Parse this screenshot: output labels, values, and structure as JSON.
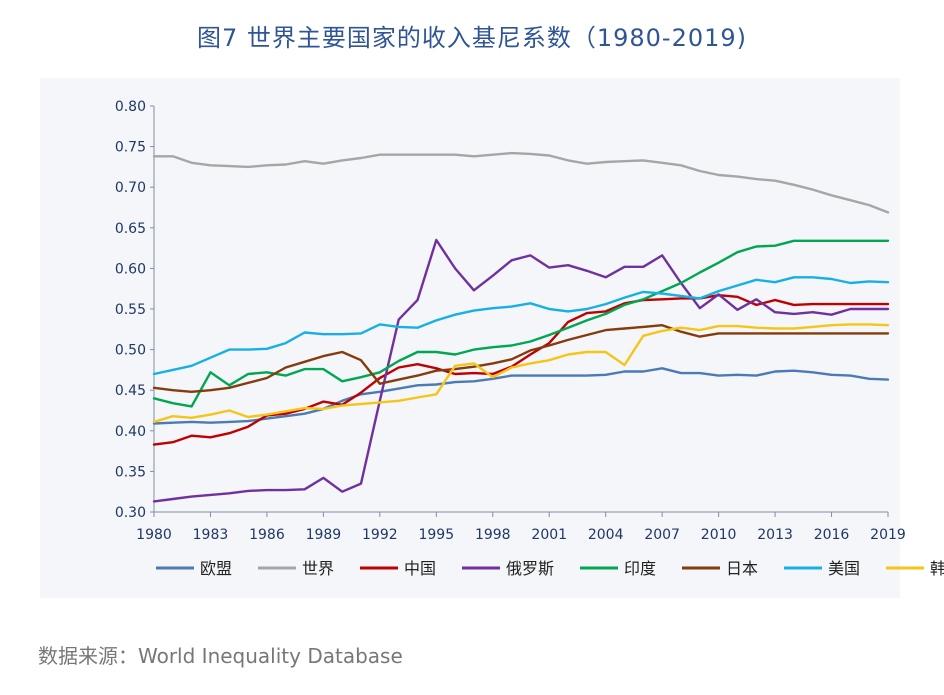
{
  "title": "图7  世界主要国家的收入基尼系数（1980-2019)",
  "source": "数据来源：World Inequality Database",
  "chart_data": {
    "type": "line",
    "title": "图7  世界主要国家的收入基尼系数（1980-2019)",
    "xlabel": "",
    "ylabel": "",
    "x": [
      1980,
      1981,
      1982,
      1983,
      1984,
      1985,
      1986,
      1987,
      1988,
      1989,
      1990,
      1991,
      1992,
      1993,
      1994,
      1995,
      1996,
      1997,
      1998,
      1999,
      2000,
      2001,
      2002,
      2003,
      2004,
      2005,
      2006,
      2007,
      2008,
      2009,
      2010,
      2011,
      2012,
      2013,
      2014,
      2015,
      2016,
      2017,
      2018,
      2019
    ],
    "xticks": [
      1980,
      1983,
      1986,
      1989,
      1992,
      1995,
      1998,
      2001,
      2004,
      2007,
      2010,
      2013,
      2016,
      2019
    ],
    "yticks": [
      "0.30",
      "0.35",
      "0.40",
      "0.45",
      "0.50",
      "0.55",
      "0.60",
      "0.65",
      "0.70",
      "0.75",
      "0.80"
    ],
    "xlim": [
      1980,
      2019
    ],
    "ylim": [
      0.3,
      0.8
    ],
    "grid": false,
    "legend_position": "bottom",
    "series": [
      {
        "name": "欧盟",
        "color": "#4a7ab7",
        "values": [
          0.409,
          0.41,
          0.411,
          0.41,
          0.411,
          0.412,
          0.415,
          0.418,
          0.421,
          0.427,
          0.437,
          0.445,
          0.448,
          0.452,
          0.456,
          0.457,
          0.46,
          0.461,
          0.464,
          0.468,
          0.468,
          0.468,
          0.468,
          0.468,
          0.469,
          0.473,
          0.473,
          0.477,
          0.471,
          0.471,
          0.468,
          0.469,
          0.468,
          0.473,
          0.474,
          0.472,
          0.469,
          0.468,
          0.464,
          0.463
        ]
      },
      {
        "name": "世界",
        "color": "#a6a6a6",
        "values": [
          0.738,
          0.738,
          0.73,
          0.727,
          0.726,
          0.725,
          0.727,
          0.728,
          0.732,
          0.729,
          0.733,
          0.736,
          0.74,
          0.74,
          0.74,
          0.74,
          0.74,
          0.738,
          0.74,
          0.742,
          0.741,
          0.739,
          0.733,
          0.729,
          0.731,
          0.732,
          0.733,
          0.73,
          0.727,
          0.72,
          0.715,
          0.713,
          0.71,
          0.708,
          0.703,
          0.697,
          0.69,
          0.684,
          0.678,
          0.669
        ]
      },
      {
        "name": "中国",
        "color": "#c00000",
        "values": [
          0.383,
          0.386,
          0.394,
          0.392,
          0.397,
          0.405,
          0.419,
          0.421,
          0.427,
          0.436,
          0.432,
          0.447,
          0.465,
          0.478,
          0.482,
          0.477,
          0.47,
          0.471,
          0.47,
          0.479,
          0.494,
          0.508,
          0.534,
          0.545,
          0.547,
          0.557,
          0.561,
          0.562,
          0.563,
          0.563,
          0.567,
          0.565,
          0.555,
          0.561,
          0.555,
          0.556,
          0.556,
          0.556,
          0.556,
          0.556
        ]
      },
      {
        "name": "俄罗斯",
        "color": "#7030a0",
        "values": [
          0.313,
          0.316,
          0.319,
          0.321,
          0.323,
          0.326,
          0.327,
          0.327,
          0.328,
          0.342,
          0.325,
          0.335,
          0.437,
          0.537,
          0.561,
          0.635,
          0.6,
          0.573,
          0.591,
          0.61,
          0.616,
          0.601,
          0.604,
          0.597,
          0.589,
          0.602,
          0.602,
          0.616,
          0.582,
          0.551,
          0.568,
          0.549,
          0.562,
          0.546,
          0.544,
          0.546,
          0.543,
          0.55,
          0.55,
          0.55
        ]
      },
      {
        "name": "印度",
        "color": "#00a651",
        "values": [
          0.44,
          0.434,
          0.43,
          0.472,
          0.456,
          0.47,
          0.472,
          0.468,
          0.476,
          0.476,
          0.461,
          0.466,
          0.472,
          0.486,
          0.497,
          0.497,
          0.494,
          0.5,
          0.503,
          0.505,
          0.51,
          0.518,
          0.527,
          0.536,
          0.544,
          0.555,
          0.562,
          0.572,
          0.582,
          0.595,
          0.607,
          0.62,
          0.627,
          0.628,
          0.634,
          0.634,
          0.634,
          0.634,
          0.634,
          0.634
        ]
      },
      {
        "name": "日本",
        "color": "#843c0c",
        "values": [
          0.453,
          0.45,
          0.448,
          0.45,
          0.453,
          0.459,
          0.465,
          0.478,
          0.485,
          0.492,
          0.497,
          0.487,
          0.458,
          0.463,
          0.468,
          0.474,
          0.476,
          0.479,
          0.483,
          0.488,
          0.499,
          0.505,
          0.512,
          0.518,
          0.524,
          0.526,
          0.528,
          0.53,
          0.522,
          0.516,
          0.52,
          0.52,
          0.52,
          0.52,
          0.52,
          0.52,
          0.52,
          0.52,
          0.52,
          0.52
        ]
      },
      {
        "name": "美国",
        "color": "#17b0e6",
        "values": [
          0.47,
          0.475,
          0.48,
          0.49,
          0.5,
          0.5,
          0.501,
          0.508,
          0.521,
          0.519,
          0.519,
          0.52,
          0.531,
          0.528,
          0.527,
          0.536,
          0.543,
          0.548,
          0.551,
          0.553,
          0.557,
          0.55,
          0.547,
          0.55,
          0.556,
          0.564,
          0.571,
          0.569,
          0.566,
          0.563,
          0.572,
          0.579,
          0.586,
          0.583,
          0.589,
          0.589,
          0.587,
          0.582,
          0.584,
          0.583
        ]
      },
      {
        "name": "韩国",
        "color": "#f5c518",
        "values": [
          0.411,
          0.418,
          0.416,
          0.42,
          0.425,
          0.417,
          0.42,
          0.424,
          0.428,
          0.427,
          0.431,
          0.433,
          0.435,
          0.437,
          0.441,
          0.445,
          0.48,
          0.483,
          0.466,
          0.478,
          0.483,
          0.487,
          0.494,
          0.497,
          0.497,
          0.481,
          0.517,
          0.523,
          0.527,
          0.524,
          0.529,
          0.529,
          0.527,
          0.526,
          0.526,
          0.528,
          0.53,
          0.531,
          0.531,
          0.53
        ]
      }
    ]
  }
}
